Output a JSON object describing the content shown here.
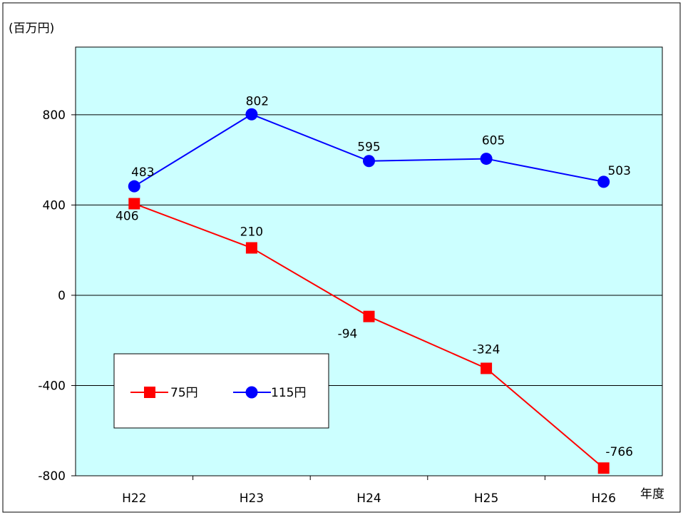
{
  "chart_data": {
    "type": "line",
    "categories": [
      "H22",
      "H23",
      "H24",
      "H25",
      "H26"
    ],
    "series": [
      {
        "name": "75円",
        "values": [
          406,
          210,
          -94,
          -324,
          -766
        ],
        "labels": [
          "406",
          "210",
          "-94",
          "-324",
          "-766"
        ],
        "color": "#ff0000",
        "marker": "square"
      },
      {
        "name": "115円",
        "values": [
          483,
          802,
          595,
          605,
          503
        ],
        "labels": [
          "483",
          "802",
          "595",
          "605",
          "503"
        ],
        "color": "#0000ff",
        "marker": "circle"
      }
    ],
    "ylabel": "(百万円)",
    "xlabel": "年度",
    "ylim": [
      -800,
      1100
    ],
    "yticks": [
      -800,
      -400,
      0,
      400,
      800
    ],
    "ytick_labels": [
      "-800",
      "-400",
      "0",
      "400",
      "800"
    ],
    "grid": true,
    "plot_background": "#ccffff",
    "legend_position": "lower-left"
  }
}
